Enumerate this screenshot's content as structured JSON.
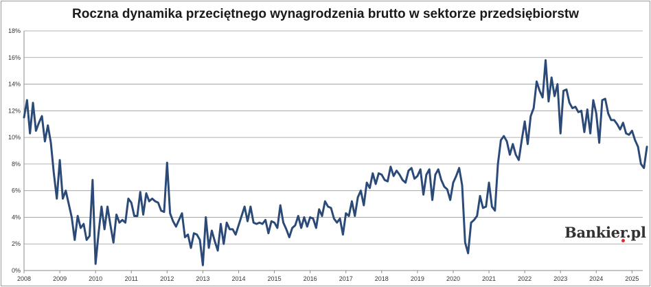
{
  "title": "Roczna dynamika przeciętnego wynagrodzenia brutto w sektorze przedsiębiorstw",
  "watermark": "Bankier.pl",
  "colors": {
    "line": "#2b4a78",
    "grid": "#999999",
    "watermark_dot": "#e3262a"
  },
  "chart_data": {
    "type": "line",
    "title": "Roczna dynamika przeciętnego wynagrodzenia brutto w sektorze przedsiębiorstw",
    "xlabel": "",
    "ylabel": "",
    "xlim": [
      2008.0,
      2025.3
    ],
    "ylim": [
      0,
      18
    ],
    "y_ticks": [
      "0%",
      "2%",
      "4%",
      "6%",
      "8%",
      "10%",
      "12%",
      "14%",
      "16%",
      "18%"
    ],
    "x_ticks": [
      "2008",
      "2009",
      "2010",
      "2011",
      "2012",
      "2013",
      "2014",
      "2015",
      "2016",
      "2017",
      "2018",
      "2019",
      "2020",
      "2021",
      "2022",
      "2023",
      "2024",
      "2025"
    ],
    "grid": true,
    "legend": "none",
    "series": [
      {
        "color": "#2b4a78",
        "start": "2008-01",
        "frequency": "monthly",
        "values": [
          11.5,
          12.8,
          10.3,
          12.6,
          10.5,
          11.1,
          11.6,
          9.7,
          10.9,
          9.6,
          7.3,
          5.4,
          8.3,
          5.4,
          6.0,
          5.0,
          4.0,
          2.3,
          4.1,
          3.2,
          3.5,
          2.3,
          2.6,
          6.8,
          0.5,
          2.8,
          4.8,
          3.1,
          4.8,
          3.4,
          2.1,
          4.2,
          3.6,
          3.8,
          3.6,
          5.4,
          5.1,
          4.1,
          4.1,
          5.9,
          4.2,
          5.8,
          5.2,
          5.4,
          5.2,
          5.1,
          4.5,
          4.4,
          8.1,
          4.3,
          3.7,
          3.3,
          3.8,
          4.3,
          2.5,
          2.7,
          1.7,
          2.8,
          2.7,
          2.3,
          0.4,
          4.0,
          1.7,
          3.0,
          2.2,
          1.5,
          3.5,
          2.0,
          3.6,
          3.1,
          3.1,
          2.7,
          3.4,
          4.1,
          4.8,
          3.7,
          4.8,
          3.6,
          3.5,
          3.6,
          3.5,
          3.8,
          2.8,
          3.7,
          3.6,
          3.2,
          4.9,
          3.6,
          3.1,
          2.5,
          3.2,
          3.4,
          4.1,
          3.2,
          4.0,
          3.3,
          4.0,
          3.9,
          3.2,
          4.6,
          4.1,
          5.2,
          4.8,
          4.7,
          3.9,
          3.6,
          3.9,
          2.7,
          4.3,
          4.1,
          5.2,
          4.1,
          5.5,
          6.0,
          4.9,
          6.6,
          6.2,
          7.3,
          6.5,
          7.3,
          7.2,
          6.8,
          6.7,
          7.8,
          7.1,
          7.5,
          7.2,
          6.8,
          6.6,
          7.5,
          7.7,
          6.9,
          7.1,
          7.6,
          5.7,
          7.2,
          7.6,
          5.3,
          7.2,
          7.6,
          6.8,
          6.3,
          6.1,
          5.3,
          6.6,
          7.1,
          7.7,
          6.4,
          2.1,
          1.3,
          3.6,
          3.8,
          4.1,
          5.6,
          4.7,
          4.8,
          6.6,
          4.8,
          4.5,
          8.0,
          9.8,
          10.1,
          9.7,
          8.7,
          9.5,
          8.7,
          8.3,
          9.8,
          11.2,
          9.5,
          11.6,
          12.2,
          14.2,
          13.5,
          13.0,
          15.8,
          12.7,
          14.5,
          13.1,
          14.0,
          10.3,
          13.5,
          13.6,
          12.6,
          12.2,
          12.3,
          11.9,
          12.0,
          10.4,
          12.1,
          10.3,
          12.8,
          11.8,
          9.6,
          12.8,
          12.9,
          11.8,
          11.3,
          11.3,
          11.0,
          10.6,
          11.1,
          10.3,
          10.2,
          10.5,
          9.8,
          9.3,
          8.0,
          7.7,
          9.3
        ]
      }
    ]
  }
}
